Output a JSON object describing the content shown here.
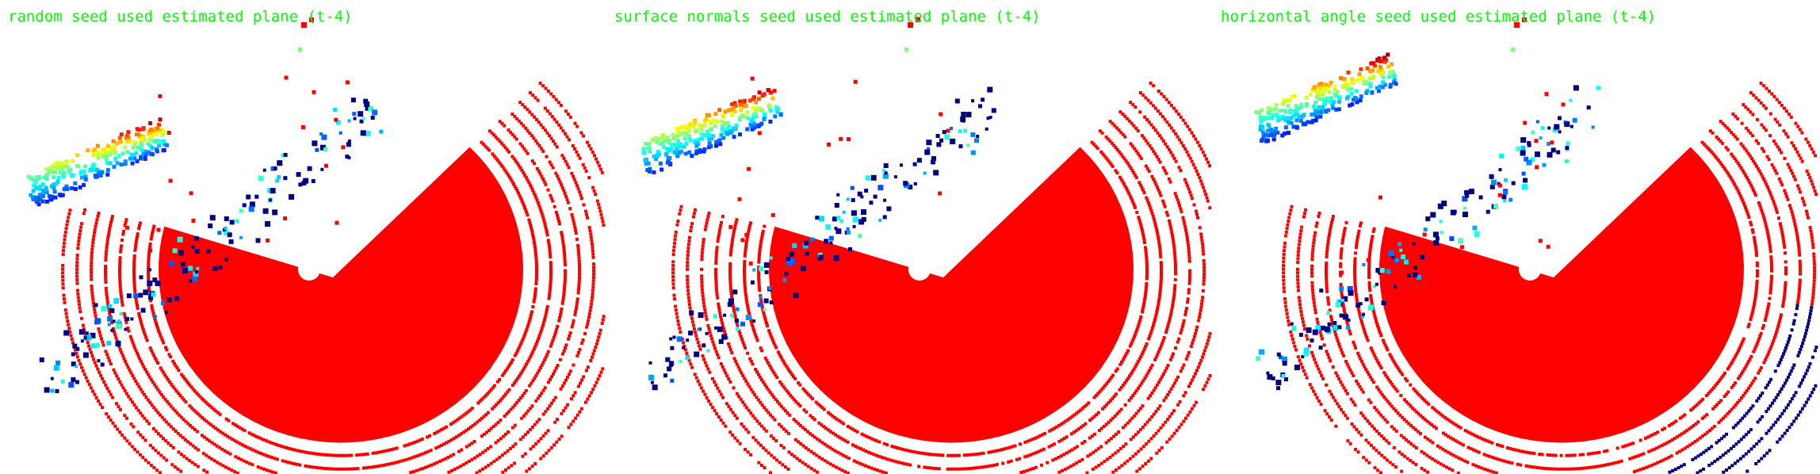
{
  "colors": {
    "background": "#ffffff",
    "title_text": "#00ff00",
    "ground_plane": "#ff0000",
    "non_ground_low": "#000080",
    "non_ground_high": "#ff0000"
  },
  "panels": [
    {
      "title": "random seed used estimated plane (t-4)"
    },
    {
      "title": "surface normals seed used estimated plane (t-4)"
    },
    {
      "title": "horizontal angle seed used estimated plane (t-4)"
    }
  ]
}
